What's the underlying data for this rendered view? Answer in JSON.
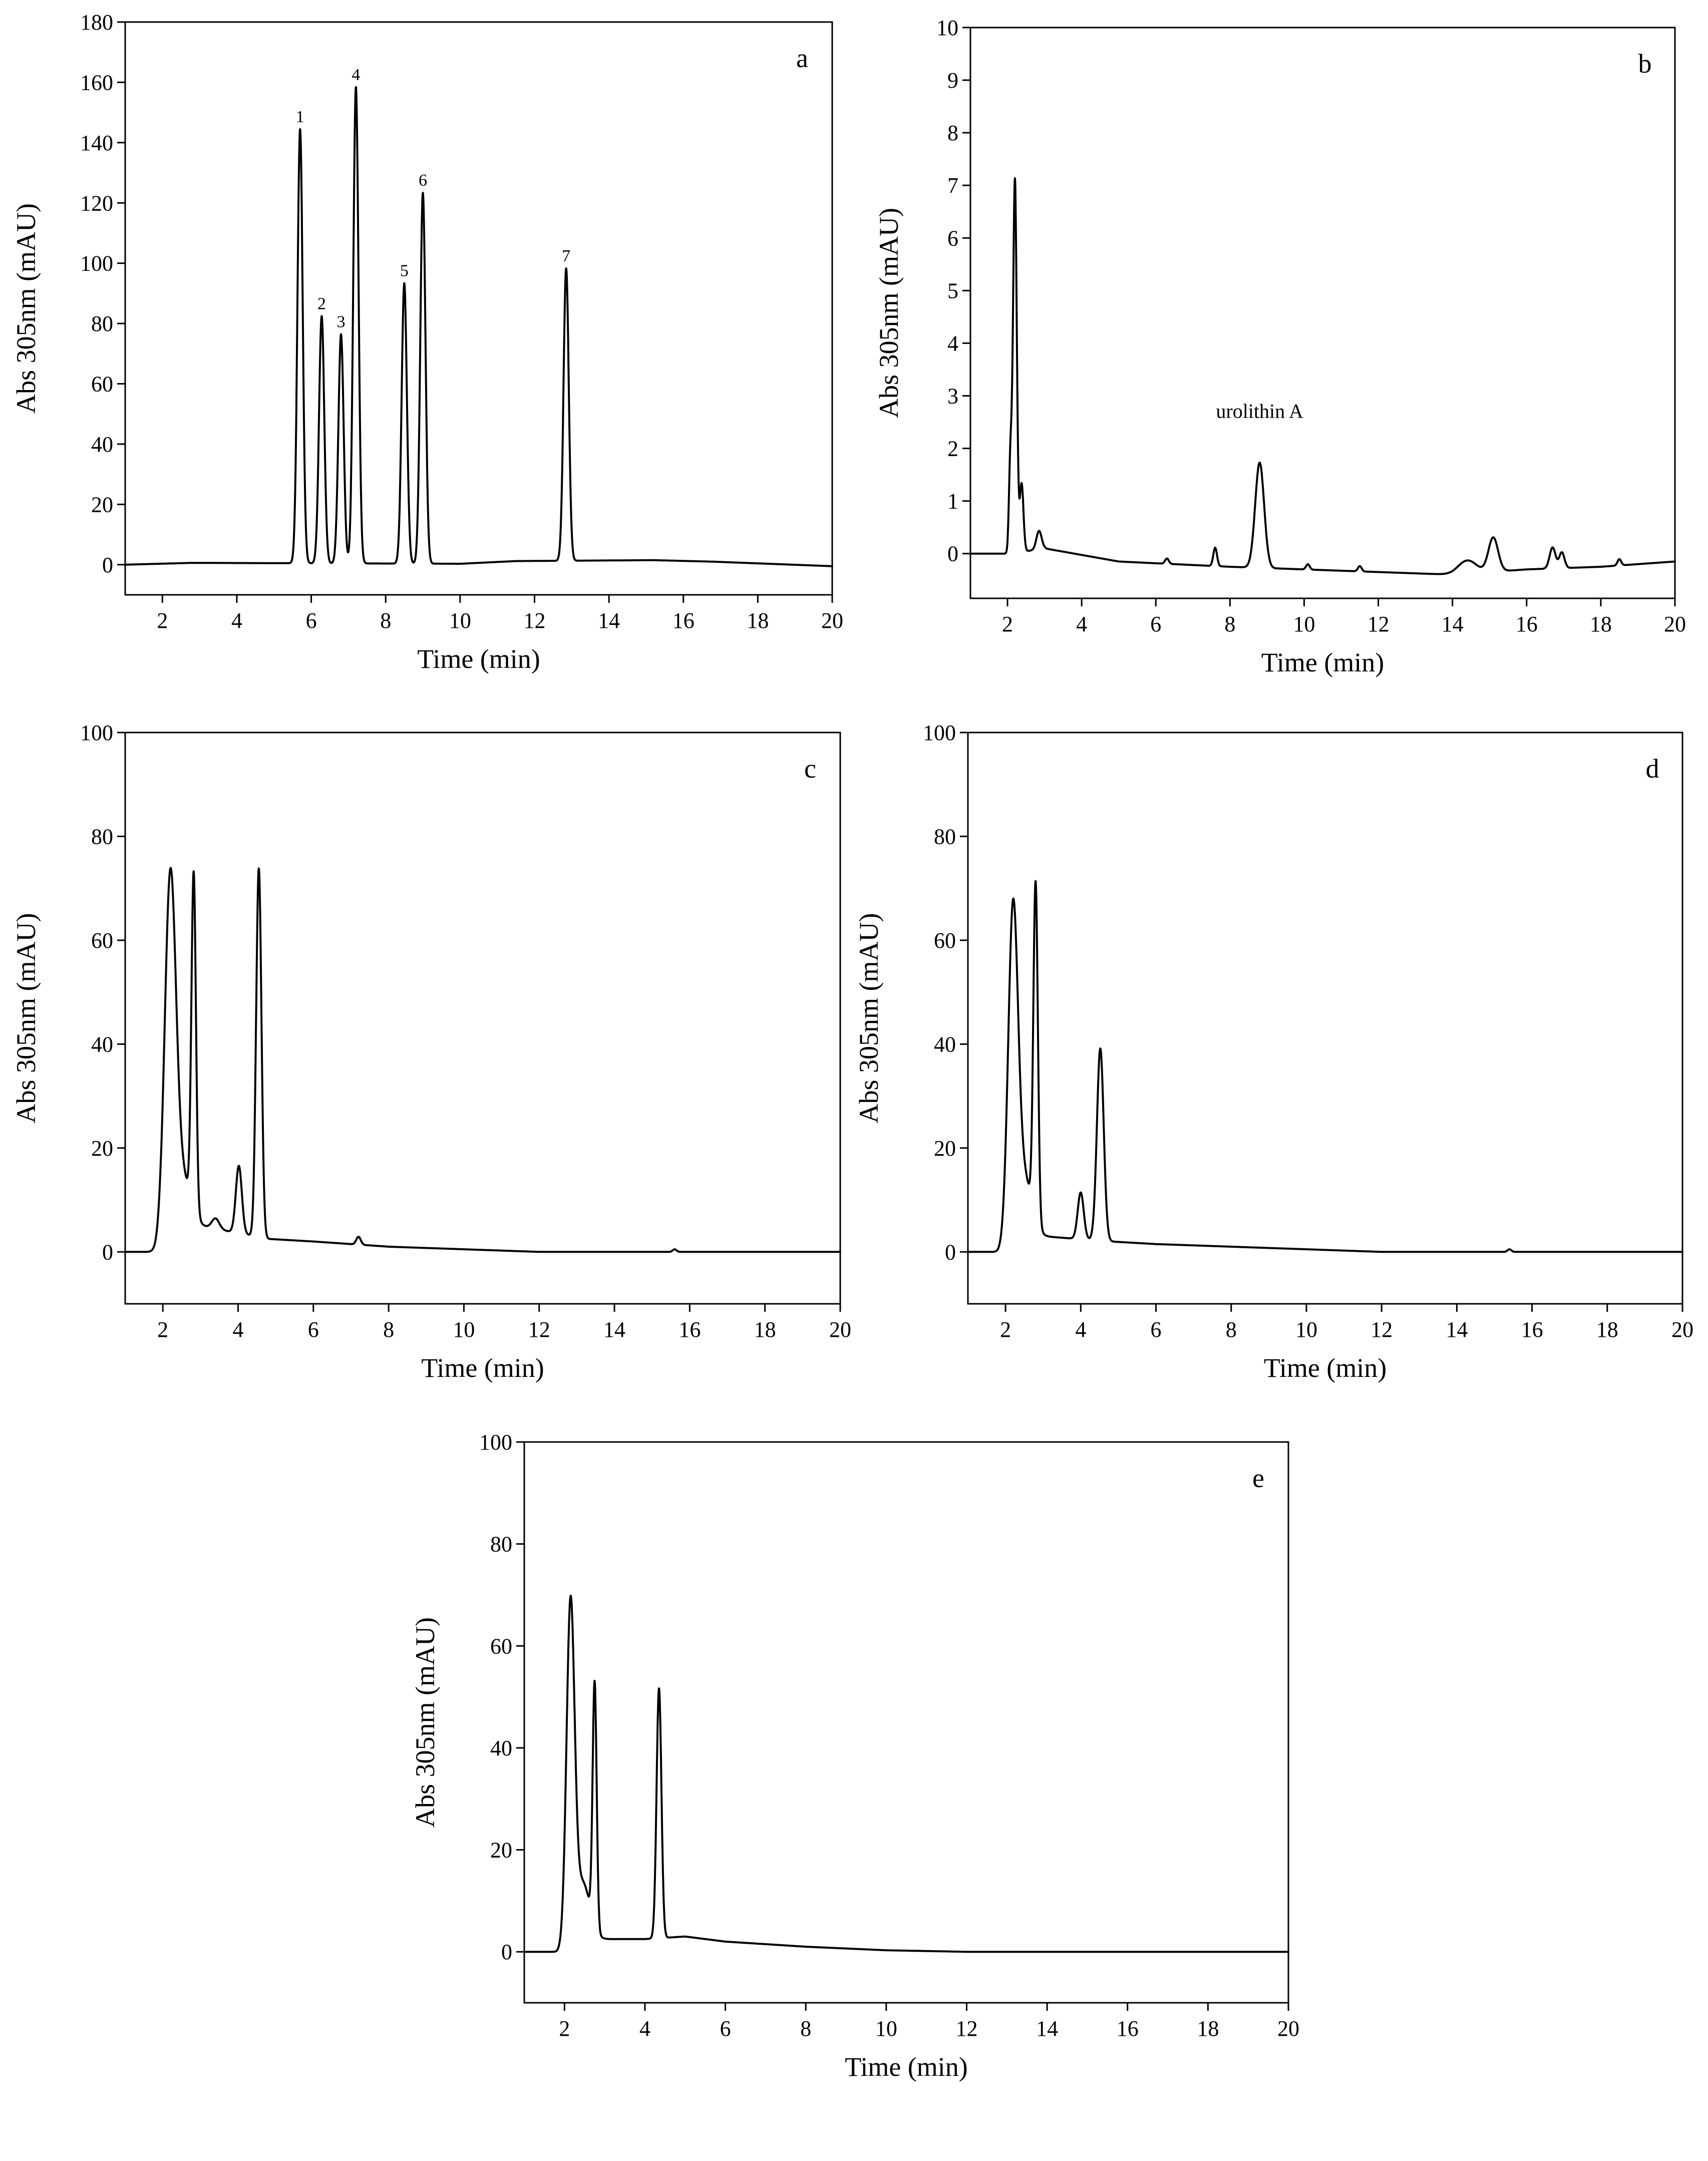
{
  "chart_data": [
    {
      "type": "line",
      "panel": "a",
      "xlabel": "Time (min)",
      "ylabel": "Abs 305nm (mAU)",
      "xlim": [
        1,
        20
      ],
      "ylim": [
        -10,
        180
      ],
      "xticks": [
        2,
        4,
        6,
        8,
        10,
        12,
        14,
        16,
        18,
        20
      ],
      "yticks": [
        0,
        20,
        40,
        60,
        80,
        100,
        120,
        140,
        160,
        180
      ],
      "grid": false,
      "baseline": [
        [
          1,
          0
        ],
        [
          2.8,
          0.6
        ],
        [
          10,
          0.3
        ],
        [
          11.5,
          1.2
        ],
        [
          15.2,
          1.5
        ],
        [
          16.8,
          1
        ],
        [
          20,
          -0.5
        ]
      ],
      "peaks": [
        {
          "label": "1",
          "x": 5.7,
          "y": 144,
          "w": 0.07
        },
        {
          "label": "2",
          "x": 6.28,
          "y": 82,
          "w": 0.07
        },
        {
          "label": "3",
          "x": 6.8,
          "y": 76,
          "w": 0.07
        },
        {
          "label": "4",
          "x": 7.2,
          "y": 158,
          "w": 0.07
        },
        {
          "label": "5",
          "x": 8.5,
          "y": 93,
          "w": 0.07
        },
        {
          "label": "6",
          "x": 9.0,
          "y": 123,
          "w": 0.07
        },
        {
          "label": "7",
          "x": 12.85,
          "y": 97,
          "w": 0.07
        }
      ],
      "annotations": []
    },
    {
      "type": "line",
      "panel": "b",
      "xlabel": "Time (min)",
      "ylabel": "Abs 305nm (mAU)",
      "xlim": [
        1,
        20
      ],
      "ylim": [
        -0.85,
        10
      ],
      "xticks": [
        2,
        4,
        6,
        8,
        10,
        12,
        14,
        16,
        18,
        20
      ],
      "yticks": [
        0,
        1,
        2,
        3,
        4,
        5,
        6,
        7,
        8,
        9,
        10
      ],
      "grid": false,
      "baseline": [
        [
          1,
          0
        ],
        [
          2.1,
          0
        ],
        [
          3,
          0.1
        ],
        [
          5,
          -0.15
        ],
        [
          8,
          -0.25
        ],
        [
          10,
          -0.3
        ],
        [
          12,
          -0.35
        ],
        [
          14,
          -0.4
        ],
        [
          16,
          -0.3
        ],
        [
          18,
          -0.25
        ],
        [
          20,
          -0.15
        ]
      ],
      "peaks": [
        {
          "label": "",
          "x": 2.2,
          "y": 7.1,
          "w": 0.05
        },
        {
          "label": "",
          "x": 2.08,
          "y": 1.8,
          "w": 0.04
        },
        {
          "label": "",
          "x": 2.38,
          "y": 1.3,
          "w": 0.05
        },
        {
          "label": "",
          "x": 2.85,
          "y": 0.35,
          "w": 0.07
        },
        {
          "label": "",
          "x": 6.3,
          "y": 0.1,
          "w": 0.05
        },
        {
          "label": "",
          "x": 7.6,
          "y": 0.35,
          "w": 0.05
        },
        {
          "label": "urolithin A",
          "x": 8.8,
          "y": 2.0,
          "w": 0.12
        },
        {
          "label": "",
          "x": 10.1,
          "y": 0.1,
          "w": 0.05
        },
        {
          "label": "",
          "x": 11.5,
          "y": 0.1,
          "w": 0.05
        },
        {
          "label": "",
          "x": 14.4,
          "y": 0.25,
          "w": 0.25
        },
        {
          "label": "",
          "x": 15.1,
          "y": 0.65,
          "w": 0.13
        },
        {
          "label": "",
          "x": 16.7,
          "y": 0.4,
          "w": 0.08
        },
        {
          "label": "",
          "x": 16.95,
          "y": 0.3,
          "w": 0.07
        },
        {
          "label": "",
          "x": 18.5,
          "y": 0.12,
          "w": 0.05
        }
      ],
      "annotations": [
        {
          "text": "urolithin A",
          "x": 8.8,
          "y": 2.2
        }
      ]
    },
    {
      "type": "line",
      "panel": "c",
      "xlabel": "Time (min)",
      "ylabel": "Abs 305nm (mAU)",
      "xlim": [
        1,
        20
      ],
      "ylim": [
        -10,
        100
      ],
      "xticks": [
        2,
        4,
        6,
        8,
        10,
        12,
        14,
        16,
        18,
        20
      ],
      "yticks": [
        0,
        20,
        40,
        60,
        80,
        100
      ],
      "grid": false,
      "baseline": [
        [
          1,
          0
        ],
        [
          1.8,
          0
        ],
        [
          3.0,
          5
        ],
        [
          4.8,
          2.5
        ],
        [
          6,
          2
        ],
        [
          8,
          1
        ],
        [
          10,
          0.5
        ],
        [
          12,
          0
        ],
        [
          20,
          0
        ]
      ],
      "peaks": [
        {
          "label": "",
          "x": 2.2,
          "y": 70,
          "w": 0.15
        },
        {
          "label": "",
          "x": 2.55,
          "y": 10,
          "w": 0.2
        },
        {
          "label": "",
          "x": 2.82,
          "y": 65,
          "w": 0.06
        },
        {
          "label": "",
          "x": 3.4,
          "y": 2,
          "w": 0.1
        },
        {
          "label": "",
          "x": 4.02,
          "y": 13,
          "w": 0.08
        },
        {
          "label": "",
          "x": 4.55,
          "y": 71,
          "w": 0.07
        },
        {
          "label": "",
          "x": 7.2,
          "y": 1.5,
          "w": 0.06
        },
        {
          "label": "",
          "x": 15.6,
          "y": 0.5,
          "w": 0.05
        }
      ],
      "annotations": []
    },
    {
      "type": "line",
      "panel": "d",
      "xlabel": "Time (min)",
      "ylabel": "Abs 305nm (mAU)",
      "xlim": [
        1,
        20
      ],
      "ylim": [
        -10,
        100
      ],
      "xticks": [
        2,
        4,
        6,
        8,
        10,
        12,
        14,
        16,
        18,
        20
      ],
      "yticks": [
        0,
        20,
        40,
        60,
        80,
        100
      ],
      "grid": false,
      "baseline": [
        [
          1,
          0
        ],
        [
          1.8,
          0
        ],
        [
          3.0,
          3
        ],
        [
          4.8,
          2
        ],
        [
          6,
          1.5
        ],
        [
          8,
          1
        ],
        [
          10,
          0.5
        ],
        [
          12,
          0
        ],
        [
          20,
          0
        ]
      ],
      "peaks": [
        {
          "label": "",
          "x": 2.2,
          "y": 63,
          "w": 0.13
        },
        {
          "label": "",
          "x": 2.5,
          "y": 12,
          "w": 0.2
        },
        {
          "label": "",
          "x": 2.8,
          "y": 65,
          "w": 0.06
        },
        {
          "label": "",
          "x": 4.0,
          "y": 9,
          "w": 0.08
        },
        {
          "label": "",
          "x": 4.52,
          "y": 37,
          "w": 0.09
        },
        {
          "label": "",
          "x": 15.4,
          "y": 0.5,
          "w": 0.05
        }
      ],
      "annotations": []
    },
    {
      "type": "line",
      "panel": "e",
      "xlabel": "Time (min)",
      "ylabel": "Abs 305nm (mAU)",
      "xlim": [
        1,
        20
      ],
      "ylim": [
        -10,
        100
      ],
      "xticks": [
        2,
        4,
        6,
        8,
        10,
        12,
        14,
        16,
        18,
        20
      ],
      "yticks": [
        0,
        20,
        40,
        60,
        80,
        100
      ],
      "grid": false,
      "baseline": [
        [
          1,
          0
        ],
        [
          1.8,
          0
        ],
        [
          2.9,
          2.5
        ],
        [
          4.0,
          2.5
        ],
        [
          5,
          3
        ],
        [
          6,
          2
        ],
        [
          7,
          1.5
        ],
        [
          8,
          1
        ],
        [
          10,
          0.3
        ],
        [
          12,
          0
        ],
        [
          20,
          0
        ]
      ],
      "peaks": [
        {
          "label": "",
          "x": 2.15,
          "y": 66,
          "w": 0.1
        },
        {
          "label": "",
          "x": 2.45,
          "y": 12,
          "w": 0.18
        },
        {
          "label": "",
          "x": 2.75,
          "y": 48,
          "w": 0.05
        },
        {
          "label": "",
          "x": 4.35,
          "y": 49,
          "w": 0.06
        }
      ],
      "annotations": []
    }
  ]
}
